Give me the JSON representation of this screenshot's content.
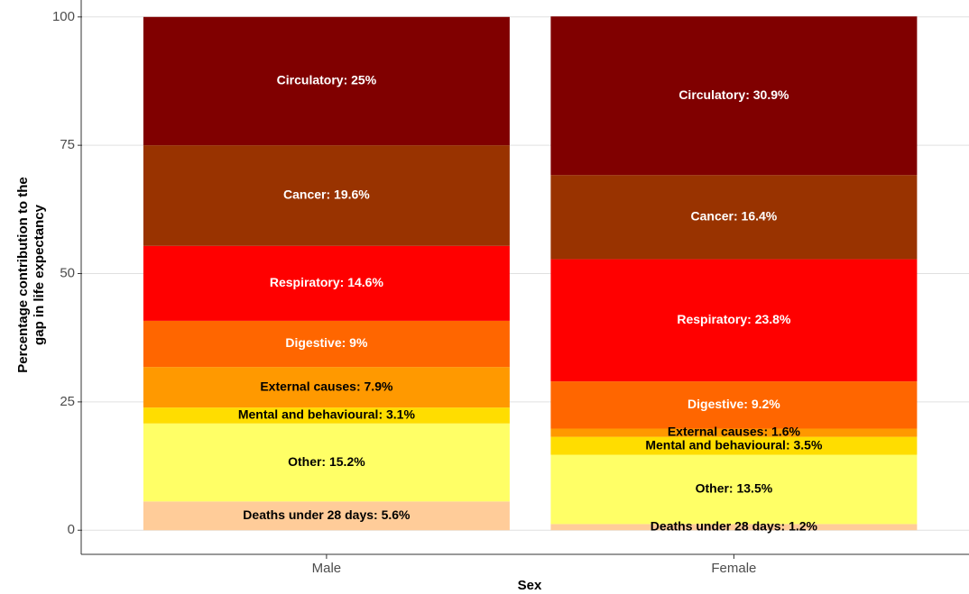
{
  "chart_data": {
    "type": "stacked_bar",
    "x_label": "Sex",
    "y_label": [
      "Percentage contribution to the",
      "gap in life expectancy"
    ],
    "categories": [
      "Male",
      "Female"
    ],
    "ylim": [
      -4.7,
      103.3
    ],
    "yticks": [
      0,
      25,
      50,
      75,
      100
    ],
    "grid": true,
    "series": [
      {
        "name": "Deaths under 28 days",
        "color": "#ffcc99",
        "label_color": "#000000",
        "values": [
          5.6,
          1.2
        ],
        "value_labels": [
          "Deaths under 28 days: 5.6%",
          "Deaths under 28 days: 1.2%"
        ]
      },
      {
        "name": "Other",
        "color": "#ffff66",
        "label_color": "#000000",
        "values": [
          15.2,
          13.5
        ],
        "value_labels": [
          "Other: 15.2%",
          "Other: 13.5%"
        ]
      },
      {
        "name": "Mental and behavioural",
        "color": "#ffdd00",
        "label_color": "#000000",
        "values": [
          3.1,
          3.5
        ],
        "value_labels": [
          "Mental and behavioural: 3.1%",
          "Mental and behavioural: 3.5%"
        ]
      },
      {
        "name": "External causes",
        "color": "#ff9900",
        "label_color": "#000000",
        "values": [
          7.9,
          1.6
        ],
        "value_labels": [
          "External causes: 7.9%",
          "External causes: 1.6%"
        ]
      },
      {
        "name": "Digestive",
        "color": "#ff6600",
        "label_color": "#ffffff",
        "values": [
          9,
          9.2
        ],
        "value_labels": [
          "Digestive: 9%",
          "Digestive: 9.2%"
        ]
      },
      {
        "name": "Respiratory",
        "color": "#ff0000",
        "label_color": "#ffffff",
        "values": [
          14.6,
          23.8
        ],
        "value_labels": [
          "Respiratory: 14.6%",
          "Respiratory: 23.8%"
        ]
      },
      {
        "name": "Cancer",
        "color": "#993300",
        "label_color": "#ffffff",
        "values": [
          19.6,
          16.4
        ],
        "value_labels": [
          "Cancer: 19.6%",
          "Cancer: 16.4%"
        ]
      },
      {
        "name": "Circulatory",
        "color": "#800000",
        "label_color": "#ffffff",
        "values": [
          25,
          30.9
        ],
        "value_labels": [
          "Circulatory: 25%",
          "Circulatory: 30.9%"
        ]
      }
    ]
  }
}
